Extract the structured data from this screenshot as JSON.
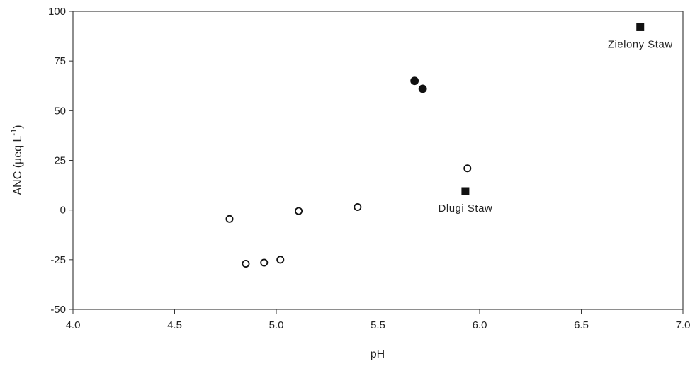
{
  "chart_data": {
    "type": "scatter",
    "xlabel": "pH",
    "ylabel": "ANC (µeq L",
    "ylabel_superscript": "-1",
    "ylabel_close": ")",
    "xlim": [
      4.0,
      7.0
    ],
    "ylim": [
      -50,
      100
    ],
    "xticks": [
      "4.0",
      "4.5",
      "5.0",
      "5.5",
      "6.0",
      "6.5",
      "7.0"
    ],
    "yticks": [
      "100",
      "75",
      "50",
      "25",
      "0",
      "-25",
      "-50"
    ],
    "grid": false,
    "series": [
      {
        "marker": "open-circle",
        "points": [
          {
            "x": 4.77,
            "y": -4.5
          },
          {
            "x": 4.85,
            "y": -27
          },
          {
            "x": 4.94,
            "y": -26.5
          },
          {
            "x": 5.02,
            "y": -25
          },
          {
            "x": 5.11,
            "y": -0.5
          },
          {
            "x": 5.4,
            "y": 1.5
          },
          {
            "x": 5.94,
            "y": 21
          }
        ]
      },
      {
        "marker": "filled-circle",
        "points": [
          {
            "x": 5.68,
            "y": 65
          },
          {
            "x": 5.72,
            "y": 61
          }
        ]
      },
      {
        "marker": "filled-square",
        "points": [
          {
            "x": 5.93,
            "y": 9.5
          },
          {
            "x": 6.79,
            "y": 92
          }
        ]
      }
    ],
    "annotations": [
      {
        "text": "Zielony Staw",
        "x": 6.79,
        "y": 92
      },
      {
        "text": "Dlugi Staw",
        "x": 5.93,
        "y": 9.5
      }
    ],
    "colors": {
      "marker": "#111111",
      "axis": "#333333",
      "text": "#222222"
    }
  }
}
